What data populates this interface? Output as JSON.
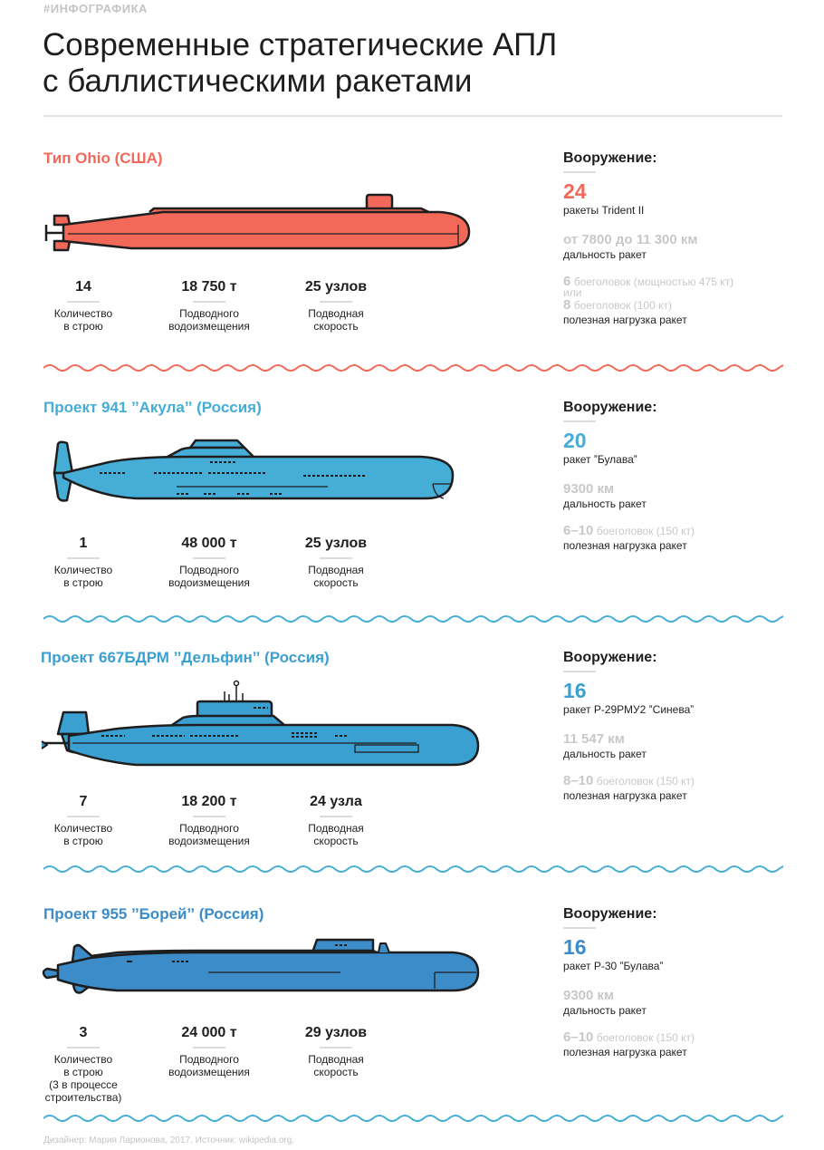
{
  "header": {
    "tag": "#ИНФОГРАФИКА",
    "title_line1": "Современные стратегические АПЛ",
    "title_line2": "с баллистическими ракетами"
  },
  "colors": {
    "ohio": "#f2695a",
    "akula": "#45add6",
    "delfin": "#3a9fd1",
    "borei": "#3b8cc9",
    "wave_red": "#f2695a",
    "wave_blue": "#45add6"
  },
  "submarines": [
    {
      "name": "Тип Ohio (США)",
      "stats": [
        {
          "value": "14",
          "label": "Количество\nв строю"
        },
        {
          "value": "18 750  т",
          "label": "Подводного\nводоизмещения"
        },
        {
          "value": "25 узлов",
          "label": "Подводная\nскорость"
        }
      ],
      "armament": {
        "title": "Вооружение:",
        "count": "24",
        "missile": "ракеты Trident II",
        "range": "от 7800 до 11 300 км",
        "range_label": "дальность ракет",
        "warheads_num": "6",
        "warheads_text": "боеголовок (мощностью 475 кт)",
        "or": "или",
        "warheads_num2": "8",
        "warheads_text2": "боеголовок (100 кт)",
        "payload_label": "полезная нагрузка ракет"
      }
    },
    {
      "name": "Проект 941 ˮАкулаˮ (Россия)",
      "stats": [
        {
          "value": "1",
          "label": "Количество\nв строю"
        },
        {
          "value": "48 000  т",
          "label": "Подводного\nводоизмещения"
        },
        {
          "value": "25 узлов",
          "label": "Подводная\nскорость"
        }
      ],
      "armament": {
        "title": "Вооружение:",
        "count": "20",
        "missile": "ракет ˮБулаваˮ",
        "range": "9300 км",
        "range_label": "дальность ракет",
        "warheads_num": "6–10",
        "warheads_text": "боеголовок (150 кт)",
        "payload_label": "полезная нагрузка ракет"
      }
    },
    {
      "name": "Проект 667БДРМ ˮДельфинˮ (Россия)",
      "stats": [
        {
          "value": "7",
          "label": "Количество\nв строю"
        },
        {
          "value": "18 200  т",
          "label": "Подводного\nводоизмещения"
        },
        {
          "value": "24 узла",
          "label": "Подводная\nскорость"
        }
      ],
      "armament": {
        "title": "Вооружение:",
        "count": "16",
        "missile": "ракет Р-29РМУ2 ˮСиневаˮ",
        "range": "11 547 км",
        "range_label": "дальность ракет",
        "warheads_num": "8–10",
        "warheads_text": "боеголовок (150 кт)",
        "payload_label": "полезная нагрузка ракет"
      }
    },
    {
      "name": "Проект 955 ˮБорейˮ (Россия)",
      "stats": [
        {
          "value": "3",
          "label": "Количество\nв строю\n(3 в процессе\nстроительства)"
        },
        {
          "value": "24 000  т",
          "label": "Подводного\nводоизмещения"
        },
        {
          "value": "29 узлов",
          "label": "Подводная\nскорость"
        }
      ],
      "armament": {
        "title": "Вооружение:",
        "count": "16",
        "missile": "ракет Р-30 ˮБулаваˮ",
        "range": "9300 км",
        "range_label": "дальность ракет",
        "warheads_num": "6–10",
        "warheads_text": "боеголовок (150 кт)",
        "payload_label": "полезная нагрузка ракет"
      }
    }
  ],
  "footer": {
    "credit": "Дизайнер: Мария Ларионова, 2017. Источник: wikipedia.org."
  }
}
